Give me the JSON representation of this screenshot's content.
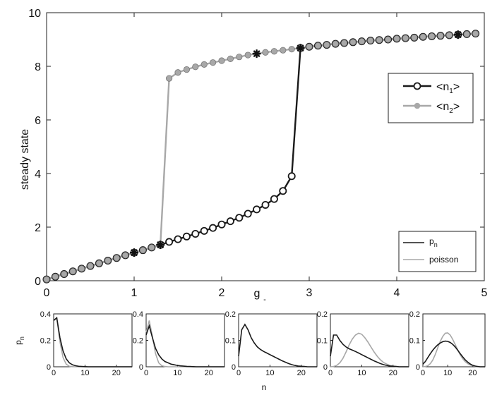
{
  "chart_data": [
    {
      "type": "line",
      "ylabel": "steady state",
      "xlabel_main": "g",
      "xlabel_sub": "-",
      "xlim": [
        0,
        5
      ],
      "ylim": [
        0,
        10
      ],
      "xticks": [
        0,
        1,
        2,
        3,
        4,
        5
      ],
      "yticks": [
        0,
        2,
        4,
        6,
        8,
        10
      ],
      "legend": {
        "position": "right",
        "n1_main": "<n",
        "n1_sub": "1",
        "n1_end": ">",
        "n2_main": "<n",
        "n2_sub": "2",
        "n2_end": ">"
      },
      "series": [
        {
          "name": "<n1>",
          "color": "#1a1a1a",
          "marker": "open-circle",
          "x": [
            0,
            0.1,
            0.2,
            0.3,
            0.4,
            0.5,
            0.6,
            0.7,
            0.8,
            0.9,
            1.0,
            1.1,
            1.2,
            1.3,
            1.4,
            1.5,
            1.6,
            1.7,
            1.8,
            1.9,
            2.0,
            2.1,
            2.2,
            2.3,
            2.4,
            2.5,
            2.6,
            2.7,
            2.8,
            2.9,
            3.0,
            3.1,
            3.2,
            3.3,
            3.4,
            3.5,
            3.6,
            3.7,
            3.8,
            3.9,
            4.0,
            4.1,
            4.2,
            4.3,
            4.4,
            4.5,
            4.6,
            4.7,
            4.8,
            4.9
          ],
          "y": [
            0.05,
            0.15,
            0.25,
            0.35,
            0.45,
            0.55,
            0.65,
            0.75,
            0.85,
            0.95,
            1.05,
            1.14,
            1.24,
            1.34,
            1.45,
            1.55,
            1.65,
            1.75,
            1.86,
            1.97,
            2.1,
            2.22,
            2.35,
            2.5,
            2.66,
            2.83,
            3.05,
            3.35,
            3.9,
            8.68,
            8.73,
            8.77,
            8.8,
            8.84,
            8.87,
            8.9,
            8.93,
            8.96,
            8.98,
            9.0,
            9.03,
            9.05,
            9.07,
            9.1,
            9.12,
            9.14,
            9.16,
            9.18,
            9.2,
            9.22
          ]
        },
        {
          "name": "<n2>",
          "color": "#a8a8a8",
          "marker": "filled-dot",
          "x": [
            0,
            0.1,
            0.2,
            0.3,
            0.4,
            0.5,
            0.6,
            0.7,
            0.8,
            0.9,
            1.0,
            1.1,
            1.2,
            1.3,
            1.4,
            1.5,
            1.6,
            1.7,
            1.8,
            1.9,
            2.0,
            2.1,
            2.2,
            2.3,
            2.4,
            2.5,
            2.6,
            2.7,
            2.8,
            2.9,
            3.0,
            3.1,
            3.2,
            3.3,
            3.4,
            3.5,
            3.6,
            3.7,
            3.8,
            3.9,
            4.0,
            4.1,
            4.2,
            4.3,
            4.4,
            4.5,
            4.6,
            4.7,
            4.8,
            4.9
          ],
          "y": [
            0.05,
            0.15,
            0.25,
            0.35,
            0.45,
            0.55,
            0.65,
            0.75,
            0.85,
            0.95,
            1.05,
            1.14,
            1.24,
            1.34,
            7.55,
            7.77,
            7.88,
            7.98,
            8.07,
            8.14,
            8.21,
            8.28,
            8.35,
            8.42,
            8.47,
            8.52,
            8.56,
            8.6,
            8.64,
            8.68,
            8.73,
            8.77,
            8.8,
            8.84,
            8.87,
            8.9,
            8.93,
            8.96,
            8.98,
            9.0,
            9.03,
            9.05,
            9.07,
            9.1,
            9.12,
            9.14,
            9.16,
            9.18,
            9.2,
            9.22
          ]
        }
      ],
      "star_points": [
        {
          "x": 1.0,
          "y": 1.05
        },
        {
          "x": 1.3,
          "y": 1.34
        },
        {
          "x": 2.4,
          "y": 8.47
        },
        {
          "x": 2.9,
          "y": 8.68
        },
        {
          "x": 4.7,
          "y": 9.18
        }
      ]
    },
    {
      "type": "line",
      "legend": {
        "pn_main": "p",
        "pn_sub": "n",
        "poisson": "poisson",
        "position": "bottom-right"
      },
      "xlabel": "n",
      "ylabel_main": "p",
      "ylabel_sub": "n",
      "xlim": [
        0,
        25
      ],
      "xticks": [
        0,
        10,
        20
      ],
      "panels": [
        {
          "ylim": [
            0,
            0.4
          ],
          "yticks": [
            0,
            0.2,
            0.4
          ],
          "pn": [
            0.35,
            0.37,
            0.22,
            0.12,
            0.06,
            0.03,
            0.015,
            0.008,
            0.004,
            0.002,
            0.001,
            0,
            0,
            0,
            0,
            0,
            0,
            0,
            0,
            0,
            0,
            0,
            0,
            0,
            0,
            0
          ],
          "poisson": [
            0.35,
            0.37,
            0.19,
            0.07,
            0.02,
            0.004,
            0.001,
            0,
            0,
            0,
            0,
            0,
            0,
            0,
            0,
            0,
            0,
            0,
            0,
            0,
            0,
            0,
            0,
            0,
            0,
            0
          ]
        },
        {
          "ylim": [
            0,
            0.4
          ],
          "yticks": [
            0,
            0.2,
            0.4
          ],
          "pn": [
            0.24,
            0.31,
            0.22,
            0.14,
            0.09,
            0.06,
            0.04,
            0.03,
            0.02,
            0.015,
            0.01,
            0.007,
            0.005,
            0.003,
            0.002,
            0.001,
            0,
            0,
            0,
            0,
            0,
            0,
            0,
            0,
            0,
            0
          ],
          "poisson": [
            0.26,
            0.35,
            0.23,
            0.1,
            0.03,
            0.008,
            0.002,
            0,
            0,
            0,
            0,
            0,
            0,
            0,
            0,
            0,
            0,
            0,
            0,
            0,
            0,
            0,
            0,
            0,
            0,
            0
          ]
        },
        {
          "ylim": [
            0,
            0.2
          ],
          "yticks": [
            0,
            0.1,
            0.2
          ],
          "pn": [
            0.04,
            0.14,
            0.16,
            0.14,
            0.11,
            0.09,
            0.075,
            0.065,
            0.058,
            0.052,
            0.046,
            0.04,
            0.034,
            0.028,
            0.022,
            0.017,
            0.012,
            0.008,
            0.005,
            0.003,
            0.002,
            0.001,
            0,
            0,
            0,
            0
          ],
          "poisson": []
        },
        {
          "ylim": [
            0,
            0.2
          ],
          "yticks": [
            0,
            0.1,
            0.2
          ],
          "pn": [
            0.04,
            0.12,
            0.12,
            0.1,
            0.085,
            0.075,
            0.068,
            0.063,
            0.058,
            0.052,
            0.046,
            0.04,
            0.034,
            0.028,
            0.022,
            0.017,
            0.012,
            0.008,
            0.005,
            0.003,
            0.002,
            0.001,
            0,
            0,
            0,
            0
          ],
          "poisson": [
            0,
            0.001,
            0.005,
            0.015,
            0.032,
            0.056,
            0.083,
            0.105,
            0.12,
            0.127,
            0.123,
            0.11,
            0.093,
            0.074,
            0.055,
            0.039,
            0.026,
            0.016,
            0.01,
            0.005,
            0.003,
            0.001,
            0,
            0,
            0,
            0
          ]
        },
        {
          "ylim": [
            0,
            0.2
          ],
          "yticks": [
            0,
            0.1,
            0.2
          ],
          "pn": [
            0.01,
            0.02,
            0.035,
            0.05,
            0.063,
            0.074,
            0.083,
            0.09,
            0.095,
            0.097,
            0.096,
            0.092,
            0.085,
            0.075,
            0.063,
            0.05,
            0.038,
            0.027,
            0.018,
            0.011,
            0.006,
            0.003,
            0.001,
            0,
            0,
            0
          ],
          "poisson": [
            0,
            0.001,
            0.004,
            0.012,
            0.026,
            0.047,
            0.072,
            0.096,
            0.115,
            0.127,
            0.128,
            0.12,
            0.104,
            0.084,
            0.064,
            0.046,
            0.031,
            0.02,
            0.012,
            0.007,
            0.004,
            0.002,
            0.001,
            0,
            0,
            0
          ]
        }
      ]
    }
  ]
}
